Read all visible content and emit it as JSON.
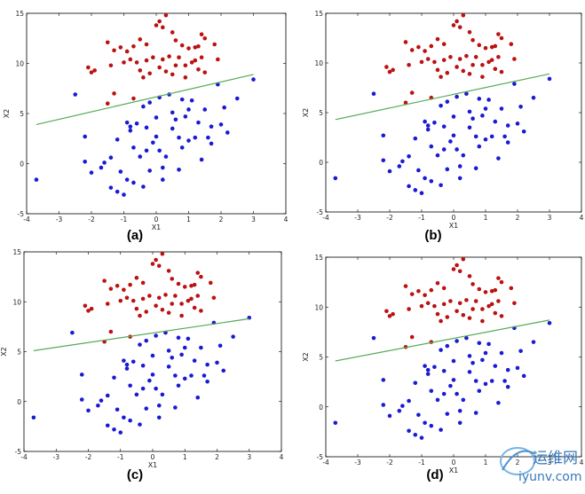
{
  "chart_data": [
    {
      "type": "scatter",
      "panel_label": "(a)",
      "xlabel": "X1",
      "ylabel": "X2",
      "xlim": [
        -4,
        4
      ],
      "ylim": [
        -5,
        15
      ],
      "xticks": [
        -4,
        -3,
        -2,
        -1,
        0,
        1,
        2,
        3,
        4
      ],
      "yticks": [
        -5,
        0,
        5,
        10,
        15
      ],
      "grid": false,
      "line": {
        "x": [
          -3.7,
          3.0
        ],
        "y": [
          3.9,
          8.9
        ],
        "color": "#55aa55"
      }
    },
    {
      "type": "scatter",
      "panel_label": "(b)",
      "xlabel": "X1",
      "ylabel": "X2",
      "xlim": [
        -4,
        4
      ],
      "ylim": [
        -5,
        15
      ],
      "xticks": [
        -4,
        -3,
        -2,
        -1,
        0,
        1,
        2,
        3,
        4
      ],
      "yticks": [
        -5,
        0,
        5,
        10,
        15
      ],
      "grid": false,
      "line": {
        "x": [
          -3.7,
          3.0
        ],
        "y": [
          4.3,
          8.9
        ],
        "color": "#55aa55"
      }
    },
    {
      "type": "scatter",
      "panel_label": "(c)",
      "xlabel": "X1",
      "ylabel": "X2",
      "xlim": [
        -4,
        4
      ],
      "ylim": [
        -5,
        15
      ],
      "xticks": [
        -4,
        -3,
        -2,
        -1,
        0,
        1,
        2,
        3,
        4
      ],
      "yticks": [
        -5,
        0,
        5,
        10,
        15
      ],
      "grid": false,
      "line": {
        "x": [
          -3.7,
          3.0
        ],
        "y": [
          5.1,
          8.3
        ],
        "color": "#55aa55"
      }
    },
    {
      "type": "scatter",
      "panel_label": "(d)",
      "xlabel": "X1",
      "ylabel": "X2",
      "xlim": [
        -4,
        4
      ],
      "ylim": [
        -5,
        15
      ],
      "xticks": [
        -4,
        -3,
        -2,
        -1,
        0,
        1,
        2,
        3,
        4
      ],
      "yticks": [
        -5,
        0,
        5,
        10,
        15
      ],
      "grid": false,
      "line": {
        "x": [
          -3.7,
          3.0
        ],
        "y": [
          4.6,
          8.7
        ],
        "color": "#55aa55"
      }
    }
  ],
  "scatter_points": {
    "red": {
      "color": "#bb1111",
      "points": [
        [
          -1.5,
          12.1
        ],
        [
          -1.3,
          11.3
        ],
        [
          -1.1,
          11.6
        ],
        [
          -0.9,
          11.2
        ],
        [
          -0.7,
          11.7
        ],
        [
          -0.5,
          12.4
        ],
        [
          -0.3,
          11.9
        ],
        [
          0.0,
          13.8
        ],
        [
          0.1,
          14.2
        ],
        [
          0.2,
          13.6
        ],
        [
          0.3,
          14.8
        ],
        [
          0.5,
          13.1
        ],
        [
          0.6,
          12.3
        ],
        [
          0.8,
          11.8
        ],
        [
          1.0,
          11.5
        ],
        [
          1.2,
          11.6
        ],
        [
          1.3,
          11.7
        ],
        [
          1.4,
          12.9
        ],
        [
          1.5,
          12.5
        ],
        [
          1.8,
          11.9
        ],
        [
          1.9,
          10.4
        ],
        [
          1.4,
          10.6
        ],
        [
          1.1,
          10.1
        ],
        [
          0.9,
          9.8
        ],
        [
          0.7,
          10.6
        ],
        [
          0.4,
          10.7
        ],
        [
          0.2,
          10.4
        ],
        [
          -0.1,
          10.6
        ],
        [
          -0.3,
          10.3
        ],
        [
          -0.6,
          10.1
        ],
        [
          -0.8,
          10.4
        ],
        [
          -1.0,
          10.1
        ],
        [
          -1.4,
          9.8
        ],
        [
          -1.9,
          9.3
        ],
        [
          -2.0,
          9.1
        ],
        [
          -2.1,
          9.6
        ],
        [
          -0.5,
          9.3
        ],
        [
          -0.2,
          9.0
        ],
        [
          0.1,
          9.6
        ],
        [
          0.3,
          9.2
        ],
        [
          0.5,
          8.9
        ],
        [
          0.9,
          8.6
        ],
        [
          1.3,
          9.4
        ],
        [
          1.5,
          9.1
        ],
        [
          -0.4,
          8.6
        ],
        [
          -1.5,
          6.0
        ],
        [
          -1.3,
          7.0
        ],
        [
          -0.7,
          6.5
        ],
        [
          0.6,
          9.8
        ],
        [
          1.2,
          10.3
        ]
      ]
    },
    "blue": {
      "color": "#1a1ad4",
      "points": [
        [
          -3.7,
          -1.6
        ],
        [
          -2.5,
          6.9
        ],
        [
          -2.2,
          2.7
        ],
        [
          -2.2,
          0.2
        ],
        [
          -1.7,
          -0.4
        ],
        [
          -1.6,
          0.1
        ],
        [
          -1.4,
          -2.4
        ],
        [
          -1.4,
          0.6
        ],
        [
          -1.2,
          2.4
        ],
        [
          -1.2,
          -2.8
        ],
        [
          -1.0,
          -3.1
        ],
        [
          -0.9,
          -1.6
        ],
        [
          -0.9,
          4.1
        ],
        [
          -0.8,
          3.3
        ],
        [
          -0.8,
          3.7
        ],
        [
          -0.7,
          -1.9
        ],
        [
          -0.7,
          1.6
        ],
        [
          -0.6,
          4.0
        ],
        [
          -0.5,
          0.7
        ],
        [
          -0.4,
          5.7
        ],
        [
          -0.4,
          -2.3
        ],
        [
          -0.3,
          1.3
        ],
        [
          -0.3,
          3.6
        ],
        [
          -0.2,
          -0.7
        ],
        [
          -0.1,
          2.1
        ],
        [
          0.0,
          4.6
        ],
        [
          0.0,
          2.7
        ],
        [
          0.1,
          6.6
        ],
        [
          0.1,
          1.3
        ],
        [
          0.2,
          -0.4
        ],
        [
          0.2,
          -1.6
        ],
        [
          0.3,
          0.7
        ],
        [
          0.4,
          6.9
        ],
        [
          0.5,
          3.5
        ],
        [
          0.5,
          5.1
        ],
        [
          0.6,
          4.4
        ],
        [
          0.7,
          -0.6
        ],
        [
          0.7,
          2.6
        ],
        [
          0.8,
          1.6
        ],
        [
          0.9,
          4.7
        ],
        [
          1.0,
          5.4
        ],
        [
          1.0,
          2.3
        ],
        [
          1.1,
          6.3
        ],
        [
          1.2,
          2.6
        ],
        [
          1.3,
          4.1
        ],
        [
          1.4,
          0.4
        ],
        [
          1.5,
          5.4
        ],
        [
          1.6,
          2.6
        ],
        [
          1.7,
          3.7
        ],
        [
          1.9,
          7.9
        ],
        [
          2.0,
          3.9
        ],
        [
          2.1,
          5.6
        ],
        [
          2.2,
          3.1
        ],
        [
          2.5,
          6.5
        ],
        [
          3.0,
          8.4
        ],
        [
          -1.1,
          -0.8
        ],
        [
          -0.2,
          6.1
        ],
        [
          0.8,
          6.4
        ],
        [
          1.7,
          2.0
        ],
        [
          -2.0,
          -0.9
        ]
      ]
    }
  },
  "watermark": {
    "cn_text": "运维网",
    "url_text": "iyunv.com"
  }
}
